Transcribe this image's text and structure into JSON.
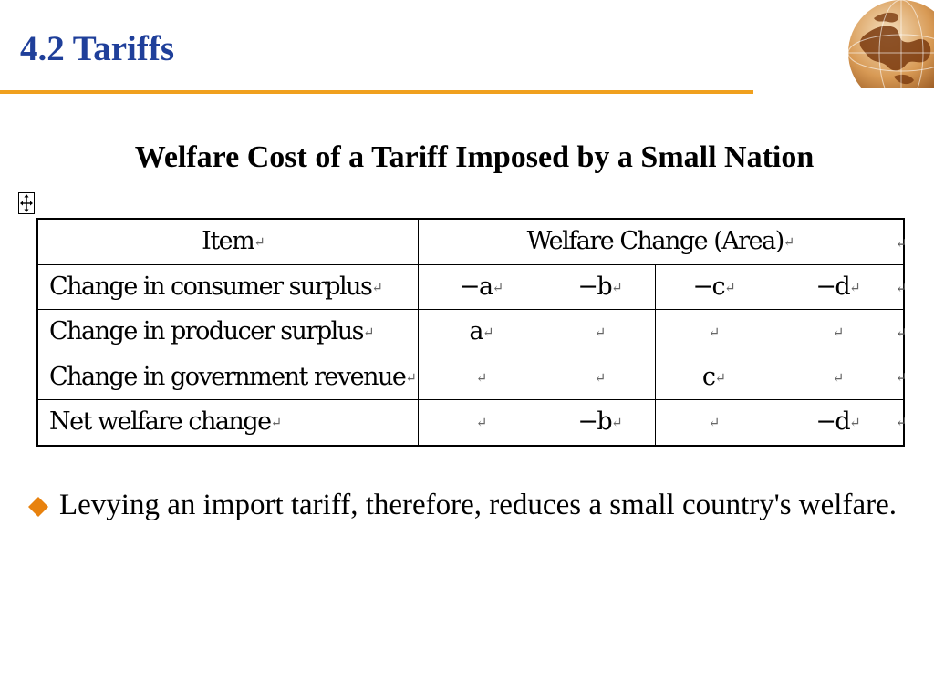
{
  "slide": {
    "title": "4.2 Tariffs",
    "subtitle": "Welfare Cost of a Tariff Imposed by a Small Nation"
  },
  "colors": {
    "title": "#1f3f9a",
    "rule": "#f0a01e",
    "bullet": "#e8820e"
  },
  "icons": {
    "globe": "globe-icon",
    "bullet": "diamond-bullet-icon",
    "table_anchor": "table-move-handle-icon",
    "paragraph_mark": "paragraph-return-mark"
  },
  "table": {
    "mark": "↵",
    "header": {
      "item": "Item",
      "welfare": "Welfare Change (Area)"
    },
    "rows": [
      {
        "label": "Change in consumer surplus",
        "values": [
          "−a",
          "−b",
          "−c",
          "−d"
        ]
      },
      {
        "label": "Change in producer surplus",
        "values": [
          "a",
          "",
          "",
          ""
        ]
      },
      {
        "label": "Change in government revenue",
        "values": [
          "",
          "",
          "c",
          ""
        ]
      },
      {
        "label": "Net welfare change",
        "values": [
          "",
          "−b",
          "",
          "−d"
        ]
      }
    ]
  },
  "bullet": {
    "text": "Levying an import tariff, therefore, reduces a small country's welfare."
  }
}
